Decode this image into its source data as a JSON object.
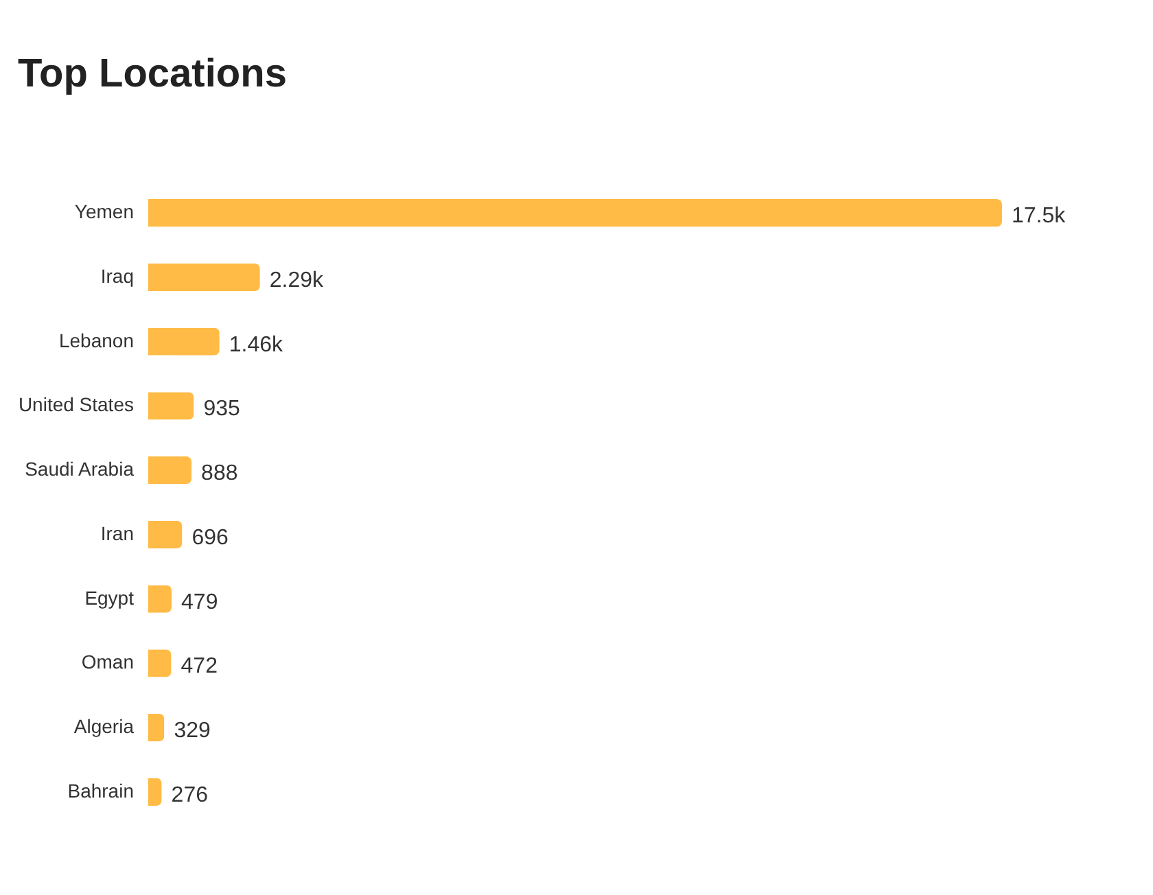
{
  "chart_data": {
    "type": "bar",
    "orientation": "horizontal",
    "title": "Top Locations",
    "categories": [
      "Yemen",
      "Iraq",
      "Lebanon",
      "United States",
      "Saudi Arabia",
      "Iran",
      "Egypt",
      "Oman",
      "Algeria",
      "Bahrain"
    ],
    "values": [
      17500,
      2290,
      1460,
      935,
      888,
      696,
      479,
      472,
      329,
      276
    ],
    "value_labels": [
      "17.5k",
      "2.29k",
      "1.46k",
      "935",
      "888",
      "696",
      "479",
      "472",
      "329",
      "276"
    ],
    "color": "#ffbb45",
    "grid": false
  }
}
